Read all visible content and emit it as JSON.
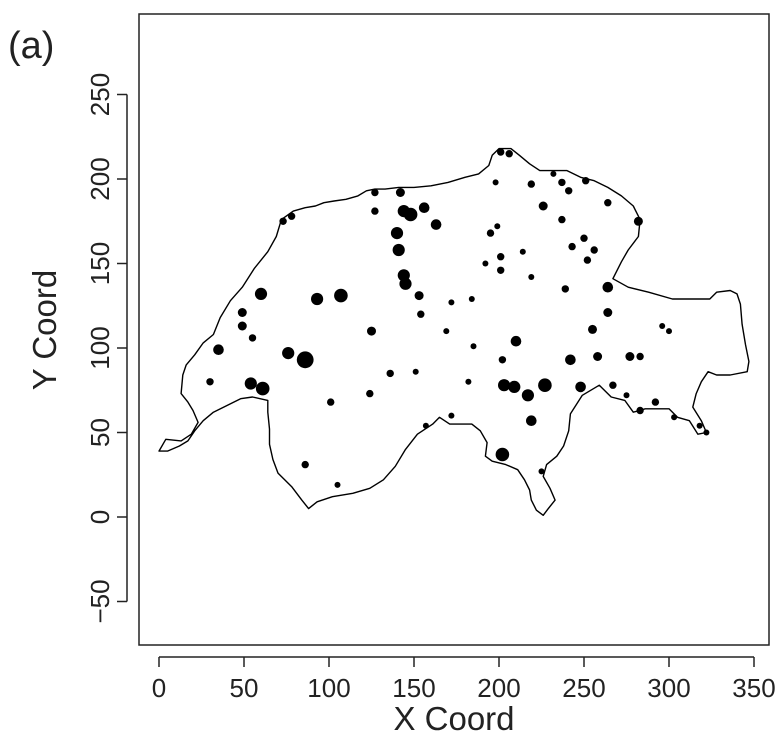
{
  "panel_label": "(a)",
  "chart_data": {
    "type": "scatter",
    "xlabel": "X Coord",
    "ylabel": "Y Coord",
    "xlim": [
      -12,
      358
    ],
    "ylim": [
      -76,
      297
    ],
    "x_ticks": [
      0,
      50,
      100,
      150,
      200,
      250,
      300,
      350
    ],
    "y_ticks": [
      -50,
      0,
      50,
      100,
      150,
      200,
      250
    ],
    "grid": false,
    "legend": "none",
    "marker_color": "#000000",
    "outline_color": "#000000",
    "size_note_scale": "marker area encodes measured value (relative 1-5)",
    "points": [
      {
        "x": 93,
        "y": 129,
        "s": 3
      },
      {
        "x": 107,
        "y": 131,
        "s": 3.5
      },
      {
        "x": 86,
        "y": 93,
        "s": 4.5
      },
      {
        "x": 76,
        "y": 97,
        "s": 3
      },
      {
        "x": 60,
        "y": 132,
        "s": 3
      },
      {
        "x": 35,
        "y": 99,
        "s": 2.5
      },
      {
        "x": 49,
        "y": 121,
        "s": 2
      },
      {
        "x": 49,
        "y": 113,
        "s": 2
      },
      {
        "x": 55,
        "y": 106,
        "s": 1.5
      },
      {
        "x": 30,
        "y": 80,
        "s": 1.5
      },
      {
        "x": 54,
        "y": 79,
        "s": 3
      },
      {
        "x": 61,
        "y": 76,
        "s": 3.5
      },
      {
        "x": 101,
        "y": 68,
        "s": 1.5
      },
      {
        "x": 124,
        "y": 73,
        "s": 1.5
      },
      {
        "x": 136,
        "y": 85,
        "s": 1.5
      },
      {
        "x": 125,
        "y": 110,
        "s": 2
      },
      {
        "x": 151,
        "y": 86,
        "s": 1
      },
      {
        "x": 86,
        "y": 31,
        "s": 1.5
      },
      {
        "x": 105,
        "y": 19,
        "s": 1
      },
      {
        "x": 78,
        "y": 178,
        "s": 1.5
      },
      {
        "x": 73,
        "y": 175,
        "s": 1.5
      },
      {
        "x": 127,
        "y": 192,
        "s": 1.5
      },
      {
        "x": 127,
        "y": 181,
        "s": 1.5
      },
      {
        "x": 142,
        "y": 192,
        "s": 2
      },
      {
        "x": 144,
        "y": 181,
        "s": 3
      },
      {
        "x": 148,
        "y": 179,
        "s": 3.5
      },
      {
        "x": 156,
        "y": 183,
        "s": 2.5
      },
      {
        "x": 163,
        "y": 173,
        "s": 2.5
      },
      {
        "x": 140,
        "y": 168,
        "s": 3
      },
      {
        "x": 141,
        "y": 158,
        "s": 3
      },
      {
        "x": 144,
        "y": 143,
        "s": 3
      },
      {
        "x": 145,
        "y": 138,
        "s": 3
      },
      {
        "x": 153,
        "y": 131,
        "s": 2
      },
      {
        "x": 154,
        "y": 120,
        "s": 1.5
      },
      {
        "x": 169,
        "y": 110,
        "s": 1
      },
      {
        "x": 172,
        "y": 127,
        "s": 1
      },
      {
        "x": 184,
        "y": 129,
        "s": 1
      },
      {
        "x": 185,
        "y": 101,
        "s": 1
      },
      {
        "x": 182,
        "y": 80,
        "s": 1
      },
      {
        "x": 172,
        "y": 60,
        "s": 1
      },
      {
        "x": 157,
        "y": 54,
        "s": 1
      },
      {
        "x": 195,
        "y": 168,
        "s": 1.5
      },
      {
        "x": 199,
        "y": 172,
        "s": 1
      },
      {
        "x": 201,
        "y": 154,
        "s": 1.5
      },
      {
        "x": 201,
        "y": 146,
        "s": 1.5
      },
      {
        "x": 192,
        "y": 150,
        "s": 1
      },
      {
        "x": 214,
        "y": 157,
        "s": 1
      },
      {
        "x": 219,
        "y": 142,
        "s": 1
      },
      {
        "x": 202,
        "y": 93,
        "s": 1.5
      },
      {
        "x": 210,
        "y": 104,
        "s": 2.5
      },
      {
        "x": 203,
        "y": 78,
        "s": 3
      },
      {
        "x": 209,
        "y": 77,
        "s": 3
      },
      {
        "x": 217,
        "y": 72,
        "s": 3
      },
      {
        "x": 227,
        "y": 78,
        "s": 3.5
      },
      {
        "x": 219,
        "y": 57,
        "s": 2.5
      },
      {
        "x": 202,
        "y": 37,
        "s": 3.5
      },
      {
        "x": 225,
        "y": 27,
        "s": 1
      },
      {
        "x": 242,
        "y": 93,
        "s": 2.5
      },
      {
        "x": 248,
        "y": 77,
        "s": 2.5
      },
      {
        "x": 258,
        "y": 95,
        "s": 2
      },
      {
        "x": 255,
        "y": 111,
        "s": 2
      },
      {
        "x": 264,
        "y": 121,
        "s": 2
      },
      {
        "x": 264,
        "y": 136,
        "s": 2.5
      },
      {
        "x": 239,
        "y": 135,
        "s": 1.5
      },
      {
        "x": 243,
        "y": 160,
        "s": 1.5
      },
      {
        "x": 237,
        "y": 176,
        "s": 1.5
      },
      {
        "x": 226,
        "y": 184,
        "s": 2
      },
      {
        "x": 219,
        "y": 197,
        "s": 1.5
      },
      {
        "x": 237,
        "y": 198,
        "s": 1.5
      },
      {
        "x": 241,
        "y": 193,
        "s": 1.5
      },
      {
        "x": 250,
        "y": 165,
        "s": 1.5
      },
      {
        "x": 252,
        "y": 152,
        "s": 1.5
      },
      {
        "x": 256,
        "y": 158,
        "s": 1.5
      },
      {
        "x": 251,
        "y": 199,
        "s": 1.5
      },
      {
        "x": 264,
        "y": 186,
        "s": 1.5
      },
      {
        "x": 282,
        "y": 175,
        "s": 2
      },
      {
        "x": 201,
        "y": 216,
        "s": 1.5
      },
      {
        "x": 206,
        "y": 215,
        "s": 1.5
      },
      {
        "x": 198,
        "y": 198,
        "s": 1
      },
      {
        "x": 232,
        "y": 203,
        "s": 1
      },
      {
        "x": 267,
        "y": 78,
        "s": 1.5
      },
      {
        "x": 277,
        "y": 95,
        "s": 2
      },
      {
        "x": 283,
        "y": 95,
        "s": 1.5
      },
      {
        "x": 292,
        "y": 68,
        "s": 1.5
      },
      {
        "x": 283,
        "y": 63,
        "s": 1.5
      },
      {
        "x": 275,
        "y": 72,
        "s": 1
      },
      {
        "x": 296,
        "y": 113,
        "s": 1
      },
      {
        "x": 300,
        "y": 110,
        "s": 1
      },
      {
        "x": 303,
        "y": 59,
        "s": 1
      },
      {
        "x": 318,
        "y": 54,
        "s": 1
      },
      {
        "x": 322,
        "y": 50,
        "s": 1
      }
    ],
    "outline": [
      [
        0,
        39
      ],
      [
        4,
        46
      ],
      [
        13,
        45
      ],
      [
        19,
        49
      ],
      [
        23,
        56
      ],
      [
        20,
        63
      ],
      [
        17,
        68
      ],
      [
        13,
        73
      ],
      [
        14,
        84
      ],
      [
        16,
        90
      ],
      [
        21,
        96
      ],
      [
        26,
        103
      ],
      [
        32,
        108
      ],
      [
        36,
        118
      ],
      [
        42,
        128
      ],
      [
        49,
        136
      ],
      [
        56,
        147
      ],
      [
        64,
        157
      ],
      [
        69,
        166
      ],
      [
        72,
        176
      ],
      [
        79,
        181
      ],
      [
        86,
        183
      ],
      [
        92,
        184
      ],
      [
        97,
        186
      ],
      [
        103,
        187
      ],
      [
        110,
        188
      ],
      [
        117,
        190
      ],
      [
        122,
        193
      ],
      [
        127,
        194
      ],
      [
        133,
        194
      ],
      [
        141,
        195
      ],
      [
        150,
        195
      ],
      [
        160,
        196
      ],
      [
        170,
        198
      ],
      [
        180,
        201
      ],
      [
        188,
        203
      ],
      [
        194,
        208
      ],
      [
        196,
        214
      ],
      [
        200,
        218
      ],
      [
        207,
        218
      ],
      [
        212,
        214
      ],
      [
        218,
        209
      ],
      [
        224,
        205
      ],
      [
        232,
        205
      ],
      [
        240,
        205
      ],
      [
        248,
        201
      ],
      [
        256,
        199
      ],
      [
        264,
        195
      ],
      [
        272,
        190
      ],
      [
        279,
        184
      ],
      [
        283,
        176
      ],
      [
        282,
        166
      ],
      [
        276,
        158
      ],
      [
        272,
        151
      ],
      [
        267,
        141
      ],
      [
        276,
        136
      ],
      [
        288,
        133
      ],
      [
        302,
        129
      ],
      [
        316,
        129
      ],
      [
        324,
        129
      ],
      [
        328,
        133
      ],
      [
        336,
        134
      ],
      [
        340,
        132
      ],
      [
        342,
        126
      ],
      [
        343,
        114
      ],
      [
        345,
        102
      ],
      [
        347,
        92
      ],
      [
        346,
        86
      ],
      [
        336,
        84
      ],
      [
        328,
        84
      ],
      [
        323,
        86
      ],
      [
        319,
        80
      ],
      [
        316,
        73
      ],
      [
        314,
        65
      ],
      [
        319,
        57
      ],
      [
        322,
        50
      ],
      [
        317,
        49
      ],
      [
        312,
        57
      ],
      [
        305,
        59
      ],
      [
        300,
        64
      ],
      [
        294,
        64
      ],
      [
        286,
        64
      ],
      [
        279,
        62
      ],
      [
        274,
        69
      ],
      [
        266,
        71
      ],
      [
        259,
        78
      ],
      [
        249,
        72
      ],
      [
        242,
        61
      ],
      [
        241,
        51
      ],
      [
        238,
        42
      ],
      [
        234,
        36
      ],
      [
        228,
        31
      ],
      [
        226,
        24
      ],
      [
        230,
        17
      ],
      [
        233,
        10
      ],
      [
        229,
        5
      ],
      [
        226,
        1
      ],
      [
        222,
        4
      ],
      [
        219,
        10
      ],
      [
        218,
        16
      ],
      [
        215,
        22
      ],
      [
        211,
        28
      ],
      [
        204,
        31
      ],
      [
        196,
        33
      ],
      [
        192,
        36
      ],
      [
        193,
        44
      ],
      [
        189,
        51
      ],
      [
        184,
        55
      ],
      [
        178,
        55
      ],
      [
        171,
        55
      ],
      [
        165,
        59
      ],
      [
        161,
        55
      ],
      [
        152,
        49
      ],
      [
        145,
        40
      ],
      [
        139,
        30
      ],
      [
        132,
        22
      ],
      [
        124,
        17
      ],
      [
        114,
        14
      ],
      [
        102,
        12
      ],
      [
        93,
        9
      ],
      [
        88,
        5
      ],
      [
        84,
        10
      ],
      [
        78,
        18
      ],
      [
        70,
        26
      ],
      [
        67,
        34
      ],
      [
        65,
        43
      ],
      [
        65,
        52
      ],
      [
        64,
        62
      ],
      [
        64,
        69
      ],
      [
        55,
        71
      ],
      [
        48,
        70
      ],
      [
        40,
        66
      ],
      [
        32,
        62
      ],
      [
        26,
        57
      ],
      [
        21,
        51
      ],
      [
        17,
        45
      ],
      [
        12,
        42
      ],
      [
        5,
        39
      ],
      [
        0,
        39
      ]
    ]
  }
}
